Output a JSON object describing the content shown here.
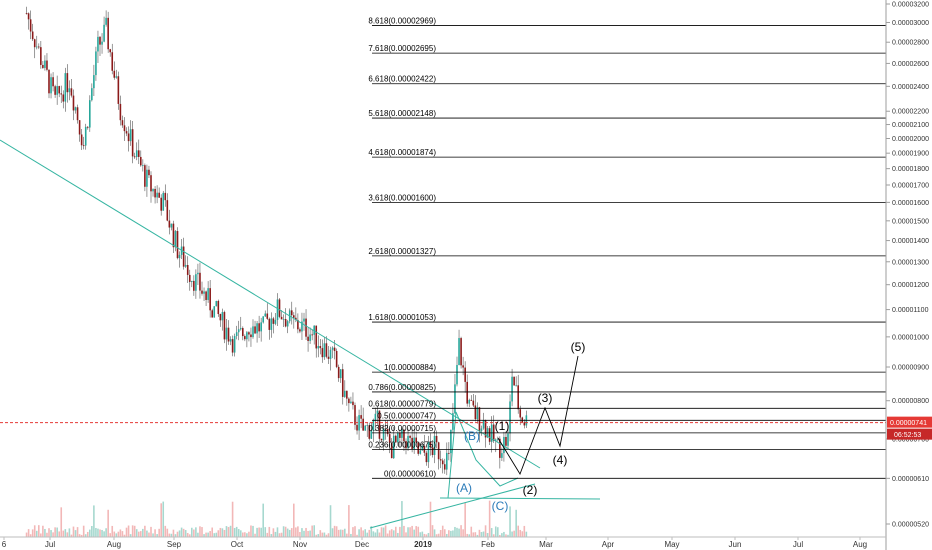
{
  "chart_data": {
    "type": "candlestick",
    "price_axis": {
      "ticks": [
        "0.00003200",
        "0.00003000",
        "0.00002800",
        "0.00002600",
        "0.00002400",
        "0.00002200",
        "0.00002100",
        "0.00002000",
        "0.00001900",
        "0.00001800",
        "0.00001700",
        "0.00001600",
        "0.00001500",
        "0.00001400",
        "0.00001300",
        "0.00001200",
        "0.00001100",
        "0.00001000",
        "0.00000900",
        "0.00000800",
        "0.00000700",
        "0.00000610",
        "0.00000520"
      ],
      "scale": "log"
    },
    "time_axis": {
      "ticks": [
        "6",
        "Jul",
        "Aug",
        "Sep",
        "Oct",
        "Nov",
        "Dec",
        "2019",
        "Feb",
        "Mar",
        "Apr",
        "May",
        "Jun",
        "Jul",
        "Aug"
      ]
    },
    "price_series": [
      [
        "2018-06-15",
        3.1e-05
      ],
      [
        "2018-06-22",
        2.65e-05
      ],
      [
        "2018-06-29",
        2.28e-05
      ],
      [
        "2018-07-06",
        2.46e-05
      ],
      [
        "2018-07-13",
        1.96e-05
      ],
      [
        "2018-07-20",
        2.75e-05
      ],
      [
        "2018-07-24",
        2.92e-05
      ],
      [
        "2018-07-31",
        2.22e-05
      ],
      [
        "2018-08-07",
        1.9e-05
      ],
      [
        "2018-08-14",
        1.7e-05
      ],
      [
        "2018-08-21",
        1.6e-05
      ],
      [
        "2018-08-28",
        1.36e-05
      ],
      [
        "2018-09-04",
        1.24e-05
      ],
      [
        "2018-09-11",
        1.15e-05
      ],
      [
        "2018-09-18",
        1.06e-05
      ],
      [
        "2018-09-25",
        9.8e-06
      ],
      [
        "2018-10-02",
        1.04e-05
      ],
      [
        "2018-10-09",
        1.03e-05
      ],
      [
        "2018-10-16",
        1.1e-05
      ],
      [
        "2018-10-23",
        1.05e-05
      ],
      [
        "2018-10-30",
        1.03e-05
      ],
      [
        "2018-11-06",
        9.8e-06
      ],
      [
        "2018-11-13",
        9.2e-06
      ],
      [
        "2018-11-20",
        7.8e-06
      ],
      [
        "2018-11-27",
        7.2e-06
      ],
      [
        "2018-12-04",
        7.4e-06
      ],
      [
        "2018-12-11",
        6.8e-06
      ],
      [
        "2018-12-18",
        7e-06
      ],
      [
        "2018-12-25",
        6.6e-06
      ],
      [
        "2019-01-01",
        6.8e-06
      ],
      [
        "2019-01-08",
        6.5e-06
      ],
      [
        "2019-01-13",
        9.7e-06
      ],
      [
        "2019-01-18",
        7.8e-06
      ],
      [
        "2019-01-25",
        7.4e-06
      ],
      [
        "2019-02-01",
        6.8e-06
      ],
      [
        "2019-02-06",
        7e-06
      ],
      [
        "2019-02-08",
        8.8e-06
      ],
      [
        "2019-02-12",
        7.6e-06
      ],
      [
        "2019-02-16",
        7.4e-06
      ]
    ],
    "fib_levels": [
      {
        "label": "8.618(0.00002969)",
        "value": 2.969e-05
      },
      {
        "label": "7.618(0.00002695)",
        "value": 2.695e-05
      },
      {
        "label": "6.618(0.00002422)",
        "value": 2.422e-05
      },
      {
        "label": "5.618(0.00002148)",
        "value": 2.148e-05
      },
      {
        "label": "4.618(0.00001874)",
        "value": 1.874e-05
      },
      {
        "label": "3.618(0.00001600)",
        "value": 1.6e-05
      },
      {
        "label": "2.618(0.00001327)",
        "value": 1.327e-05
      },
      {
        "label": "1.618(0.00001053)",
        "value": 1.053e-05
      },
      {
        "label": "1(0.00000884)",
        "value": 8.84e-06
      },
      {
        "label": "0.786(0.00000825)",
        "value": 8.25e-06
      },
      {
        "label": "0.618(0.00000779)",
        "value": 7.79e-06
      },
      {
        "label": "0.5(0.00000747)",
        "value": 7.47e-06
      },
      {
        "label": "0.382(0.00000715)",
        "value": 7.15e-06
      },
      {
        "label": "0.236(0.00000675)",
        "value": 6.75e-06
      },
      {
        "label": "0(0.00000610)",
        "value": 6.1e-06
      }
    ],
    "current_price": "0.00000741",
    "countdown": "06:52:53",
    "wave_labels": [
      "(1)",
      "(2)",
      "(3)",
      "(4)",
      "(5)"
    ],
    "corrective_labels": [
      "(A)",
      "(B)",
      "(C)"
    ],
    "colors": {
      "up": "#26a69a",
      "down": "#8b1a1a",
      "trendline": "#36b5a2",
      "fib": "#000000",
      "current_price": "#e53935",
      "volume_up": "#a6d8cf",
      "volume_down": "#f2b7b7"
    }
  }
}
